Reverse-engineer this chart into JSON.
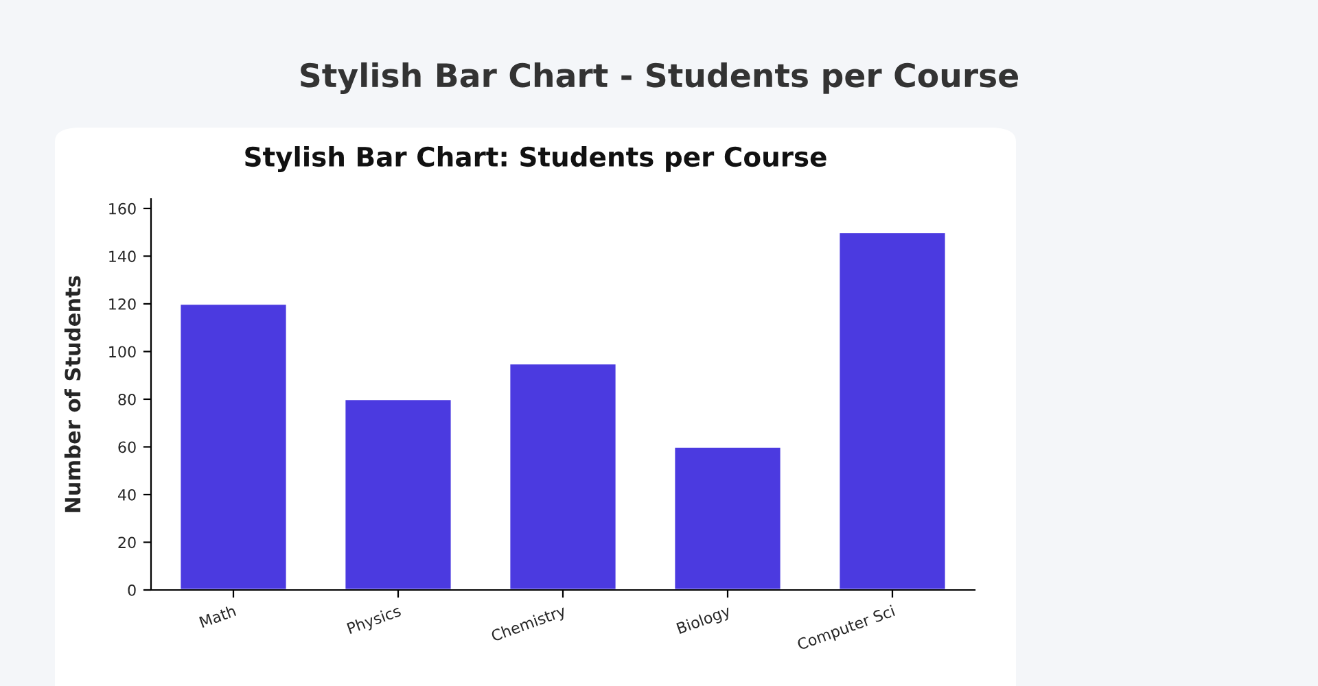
{
  "chart_data": {
    "type": "bar",
    "title": "Stylish Bar Chart - Students per Course",
    "subtitle": "Stylish Bar Chart: Students per Course",
    "ylabel": "Number of Students",
    "categories": [
      "Math",
      "Physics",
      "Chemistry",
      "Biology",
      "Computer Sci"
    ],
    "values": [
      120,
      80,
      95,
      60,
      150
    ],
    "color": "#4b3ae0",
    "ylim": [
      0,
      164
    ],
    "yticks": [
      0,
      20,
      40,
      60,
      80,
      100,
      120,
      140,
      160
    ],
    "grid": false
  }
}
